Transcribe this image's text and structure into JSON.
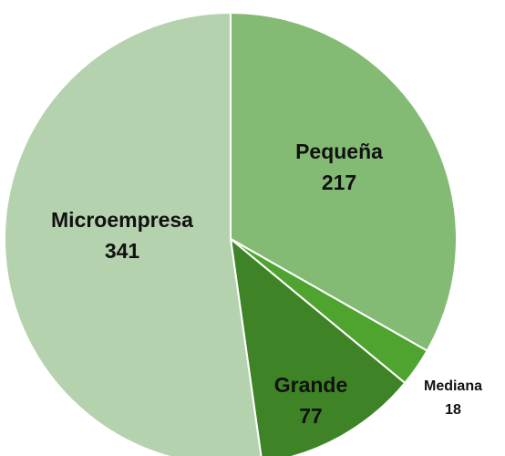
{
  "chart_data": {
    "type": "pie",
    "categories": [
      "Pequeña",
      "Mediana",
      "Grande",
      "Microempresa"
    ],
    "values": [
      217,
      18,
      77,
      341
    ],
    "colors": [
      "#84bb74",
      "#4ea42f",
      "#3e8426",
      "#b5d2ae"
    ]
  }
}
